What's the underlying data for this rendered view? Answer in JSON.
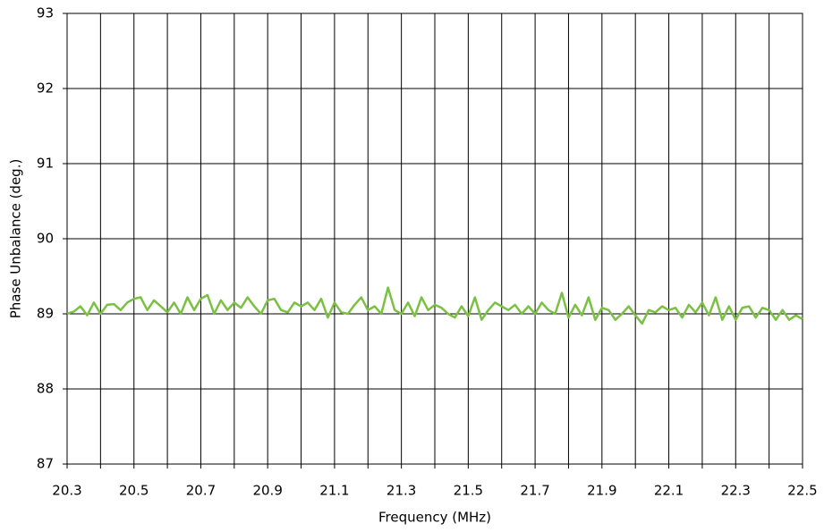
{
  "chart_data": {
    "type": "line",
    "xlabel": "Frequency (MHz)",
    "ylabel": "Phase Unbalance (deg.)",
    "x": [
      20.3,
      20.32,
      20.34,
      20.36,
      20.38,
      20.4,
      20.42,
      20.44,
      20.46,
      20.48,
      20.5,
      20.52,
      20.54,
      20.56,
      20.58,
      20.6,
      20.62,
      20.64,
      20.66,
      20.68,
      20.7,
      20.72,
      20.74,
      20.76,
      20.78,
      20.8,
      20.82,
      20.84,
      20.86,
      20.88,
      20.9,
      20.92,
      20.94,
      20.96,
      20.98,
      21.0,
      21.02,
      21.04,
      21.06,
      21.08,
      21.1,
      21.12,
      21.14,
      21.16,
      21.18,
      21.2,
      21.22,
      21.24,
      21.26,
      21.28,
      21.3,
      21.32,
      21.34,
      21.36,
      21.38,
      21.4,
      21.42,
      21.44,
      21.46,
      21.48,
      21.5,
      21.52,
      21.54,
      21.56,
      21.58,
      21.6,
      21.62,
      21.64,
      21.66,
      21.68,
      21.7,
      21.72,
      21.74,
      21.76,
      21.78,
      21.8,
      21.82,
      21.84,
      21.86,
      21.88,
      21.9,
      21.92,
      21.94,
      21.96,
      21.98,
      22.0,
      22.02,
      22.04,
      22.06,
      22.08,
      22.1,
      22.12,
      22.14,
      22.16,
      22.18,
      22.2,
      22.22,
      22.24,
      22.26,
      22.28,
      22.3,
      22.32,
      22.34,
      22.36,
      22.38,
      22.4,
      22.42,
      22.44,
      22.46,
      22.48,
      22.5
    ],
    "series": [
      {
        "color": "#7ac143",
        "values": [
          89.0,
          89.03,
          89.1,
          88.98,
          89.15,
          89.0,
          89.12,
          89.13,
          89.05,
          89.15,
          89.2,
          89.22,
          89.05,
          89.18,
          89.1,
          89.02,
          89.15,
          89.0,
          89.22,
          89.05,
          89.2,
          89.25,
          89.0,
          89.18,
          89.05,
          89.15,
          89.08,
          89.22,
          89.1,
          89.0,
          89.18,
          89.2,
          89.05,
          89.02,
          89.15,
          89.1,
          89.15,
          89.05,
          89.2,
          88.95,
          89.15,
          89.02,
          89.0,
          89.12,
          89.22,
          89.05,
          89.1,
          89.0,
          89.35,
          89.05,
          89.0,
          89.15,
          88.97,
          89.22,
          89.05,
          89.12,
          89.08,
          89.0,
          88.95,
          89.1,
          88.97,
          89.22,
          88.92,
          89.05,
          89.15,
          89.1,
          89.05,
          89.12,
          89.0,
          89.1,
          89.0,
          89.15,
          89.05,
          89.0,
          89.28,
          88.95,
          89.12,
          88.98,
          89.22,
          88.92,
          89.08,
          89.05,
          88.92,
          89.0,
          89.1,
          88.98,
          88.87,
          89.05,
          89.02,
          89.1,
          89.05,
          89.08,
          88.95,
          89.12,
          89.02,
          89.15,
          88.98,
          89.22,
          88.92,
          89.1,
          88.92,
          89.08,
          89.1,
          88.95,
          89.08,
          89.05,
          88.92,
          89.05,
          88.92,
          88.98,
          88.93
        ]
      }
    ],
    "xlim": [
      20.3,
      22.5
    ],
    "xticks": [
      20.3,
      20.5,
      20.7,
      20.9,
      21.1,
      21.3,
      21.5,
      21.7,
      21.9,
      22.1,
      22.3,
      22.5
    ],
    "xminor_ticks": [
      20.4,
      20.6,
      20.8,
      21.0,
      21.2,
      21.4,
      21.6,
      21.8,
      22.0,
      22.2,
      22.4
    ],
    "ylim": [
      87,
      93
    ],
    "yticks": [
      87,
      88,
      89,
      90,
      91,
      92,
      93
    ],
    "grid": true
  }
}
